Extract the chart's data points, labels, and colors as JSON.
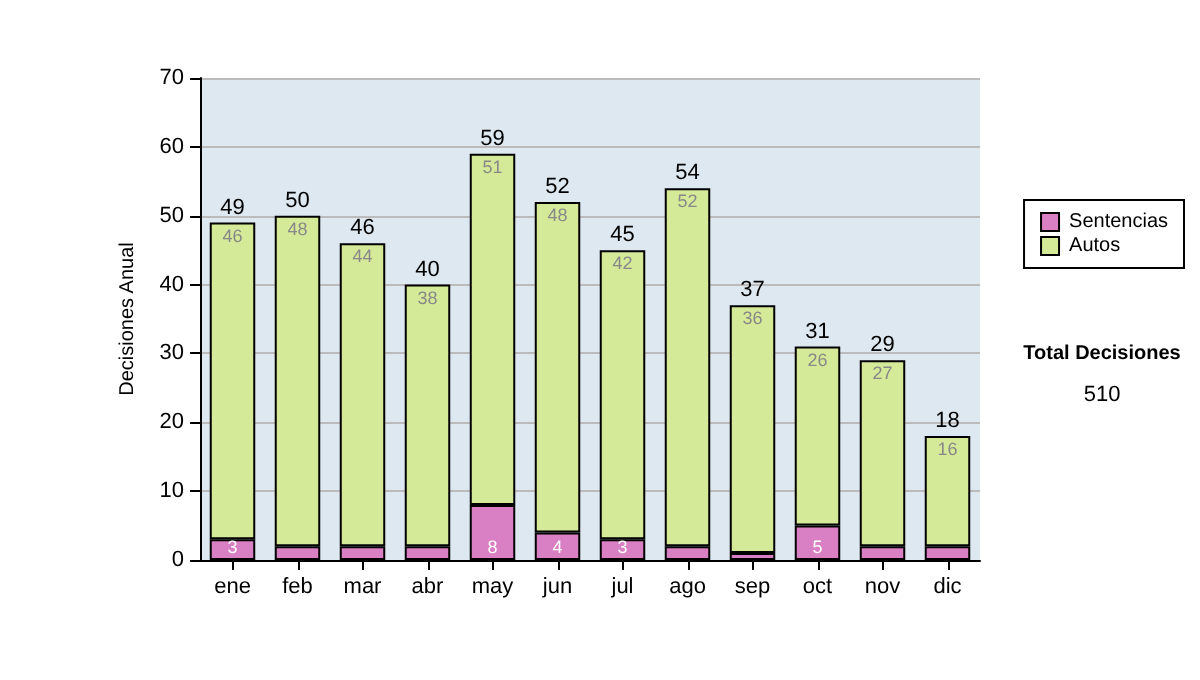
{
  "chart_data": {
    "type": "bar",
    "stacked": true,
    "ylabel": "Decisiones Anual",
    "categories": [
      "ene",
      "feb",
      "mar",
      "abr",
      "may",
      "jun",
      "jul",
      "ago",
      "sep",
      "oct",
      "nov",
      "dic"
    ],
    "series": [
      {
        "name": "Sentencias",
        "color": "#d97fc3",
        "values": [
          3,
          2,
          2,
          2,
          8,
          4,
          3,
          2,
          1,
          5,
          2,
          2
        ],
        "value_labels": [
          "3",
          null,
          null,
          null,
          "8",
          "4",
          "3",
          null,
          null,
          "5",
          null,
          null
        ]
      },
      {
        "name": "Autos",
        "color": "#d4ea98",
        "values": [
          46,
          48,
          44,
          38,
          51,
          48,
          42,
          52,
          36,
          26,
          27,
          16
        ],
        "value_labels": [
          "46",
          "48",
          "44",
          "38",
          "51",
          "48",
          "42",
          "52",
          "36",
          "26",
          "27",
          "16"
        ]
      }
    ],
    "totals": [
      "49",
      "50",
      "46",
      "40",
      "59",
      "52",
      "45",
      "54",
      "37",
      "31",
      "29",
      "18"
    ],
    "ylim": [
      0,
      70
    ],
    "yticks": [
      0,
      10,
      20,
      30,
      40,
      50,
      60,
      70
    ],
    "grid": "y",
    "legend": "right",
    "annotations": [
      "Total Decisiones",
      "510"
    ]
  }
}
